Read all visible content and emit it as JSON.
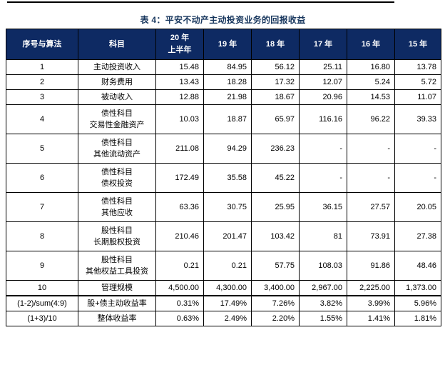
{
  "table": {
    "title": "表 4：平安不动产主动投资业务的回报收益",
    "columns": [
      "序号与算法",
      "科目",
      "20 年\n上半年",
      "19 年",
      "18 年",
      "17 年",
      "16 年",
      "15 年"
    ],
    "rows": [
      {
        "id": "1",
        "subject": "主动投资收入",
        "values": [
          "15.48",
          "84.95",
          "56.12",
          "25.11",
          "16.80",
          "13.78"
        ]
      },
      {
        "id": "2",
        "subject": "财务费用",
        "values": [
          "13.43",
          "18.28",
          "17.32",
          "12.07",
          "5.24",
          "5.72"
        ]
      },
      {
        "id": "3",
        "subject": "被动收入",
        "values": [
          "12.88",
          "21.98",
          "18.67",
          "20.96",
          "14.53",
          "11.07"
        ]
      },
      {
        "id": "4",
        "subject": "债性科目\n交易性金融资产",
        "values": [
          "10.03",
          "18.87",
          "65.97",
          "116.16",
          "96.22",
          "39.33"
        ]
      },
      {
        "id": "5",
        "subject": "债性科目\n其他流动资产",
        "values": [
          "211.08",
          "94.29",
          "236.23",
          "-",
          "-",
          "-"
        ]
      },
      {
        "id": "6",
        "subject": "债性科目\n债权投资",
        "values": [
          "172.49",
          "35.58",
          "45.22",
          "-",
          "-",
          "-"
        ]
      },
      {
        "id": "7",
        "subject": "债性科目\n其他应收",
        "values": [
          "63.36",
          "30.75",
          "25.95",
          "36.15",
          "27.57",
          "20.05"
        ]
      },
      {
        "id": "8",
        "subject": "股性科目\n长期股权投资",
        "values": [
          "210.46",
          "201.47",
          "103.42",
          "81",
          "73.91",
          "27.38"
        ]
      },
      {
        "id": "9",
        "subject": "股性科目\n其他权益工具投资",
        "values": [
          "0.21",
          "0.21",
          "57.75",
          "108.03",
          "91.86",
          "48.46"
        ]
      },
      {
        "id": "10",
        "subject": "管理规模",
        "values": [
          "4,500.00",
          "4,300.00",
          "3,400.00",
          "2,967.00",
          "2,225.00",
          "1,373.00"
        ]
      },
      {
        "id": "(1-2)/sum(4:9)",
        "subject": "股+债主动收益率",
        "values": [
          "0.31%",
          "17.49%",
          "7.26%",
          "3.82%",
          "3.99%",
          "5.96%"
        ],
        "thick_top": true
      },
      {
        "id": "(1+3)/10",
        "subject": "整体收益率",
        "values": [
          "0.63%",
          "2.49%",
          "2.20%",
          "1.55%",
          "1.41%",
          "1.81%"
        ]
      }
    ]
  },
  "colors": {
    "header_bg": "#0e2a63",
    "title": "#17365d",
    "border": "#000000"
  }
}
